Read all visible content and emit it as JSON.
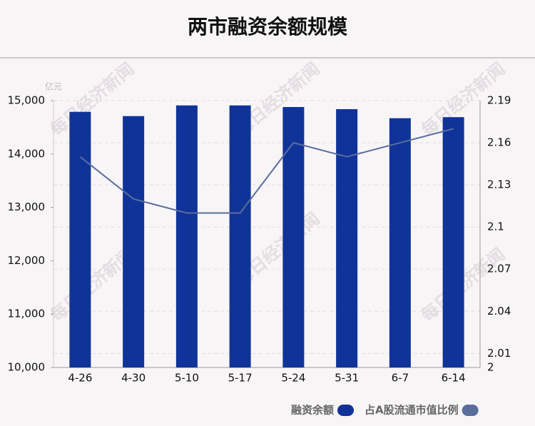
{
  "chart_data": {
    "type": "bar-line",
    "title": "两市融资余额规模",
    "y_unit": "亿元",
    "watermark": "每日经济新闻",
    "categories": [
      "4-26",
      "4-30",
      "5-10",
      "5-17",
      "5-24",
      "5-31",
      "6-7",
      "6-14"
    ],
    "series": [
      {
        "name": "融资余额",
        "type": "bar",
        "color": "#10339a",
        "values": [
          14790,
          14710,
          14910,
          14910,
          14880,
          14840,
          14670,
          14690
        ]
      },
      {
        "name": "占A股流通市值比例",
        "type": "line",
        "axis": "y2",
        "color": "#5a6e9c",
        "values": [
          2.15,
          2.12,
          2.11,
          2.11,
          2.16,
          2.15,
          2.16,
          2.17
        ]
      }
    ],
    "ylim": [
      10000,
      15000
    ],
    "yticks": [
      {
        "value": 10000,
        "label": "10,000"
      },
      {
        "value": 11000,
        "label": "11,000"
      },
      {
        "value": 12000,
        "label": "12,000"
      },
      {
        "value": 13000,
        "label": "13,000"
      },
      {
        "value": 14000,
        "label": "14,000"
      },
      {
        "value": 15000,
        "label": "15,000"
      }
    ],
    "y2lim": [
      2,
      2.19
    ],
    "y2ticks": [
      2,
      2.01,
      2.04,
      2.07,
      2.1,
      2.13,
      2.16,
      2.19
    ],
    "grid": true,
    "legend": "bottom-right"
  }
}
